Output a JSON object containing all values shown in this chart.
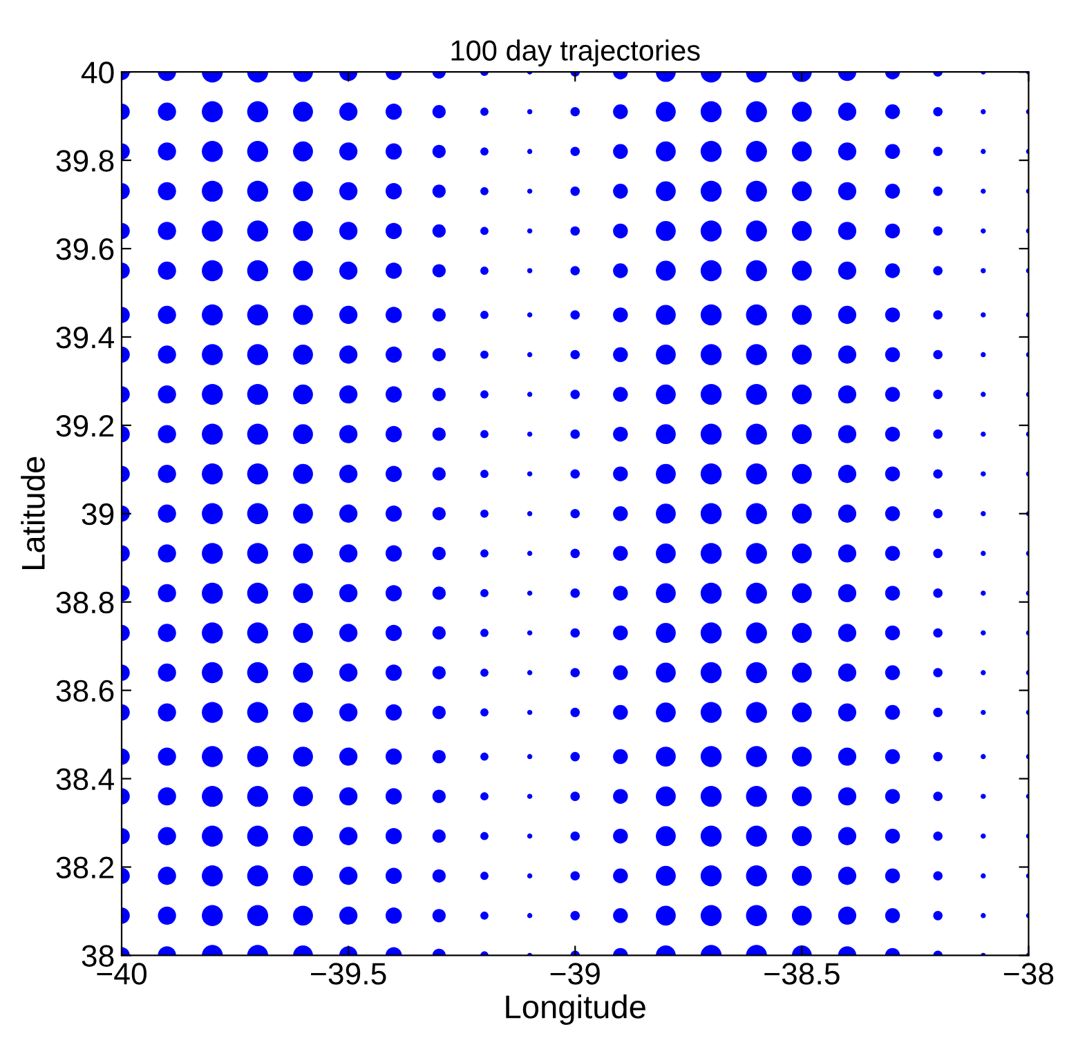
{
  "chart_data": {
    "type": "bubble",
    "title": "100 day trajectories",
    "xlabel": "Longitude",
    "ylabel": "Latitude",
    "xlim": [
      -40,
      -38
    ],
    "ylim": [
      38,
      40
    ],
    "xticks": [
      {
        "value": -40,
        "label": "−40"
      },
      {
        "value": -39.5,
        "label": "−39.5"
      },
      {
        "value": -39,
        "label": "−39"
      },
      {
        "value": -38.5,
        "label": "−38.5"
      },
      {
        "value": -38,
        "label": "−38"
      }
    ],
    "yticks": [
      38,
      38.2,
      38.4,
      38.6,
      38.8,
      39,
      39.2,
      39.4,
      39.6,
      39.8,
      40
    ],
    "grid": false,
    "marker": "circle",
    "series": [
      {
        "color": "#0000ff",
        "x": [
          -40,
          -40,
          -40,
          -40,
          -40,
          -40,
          -40,
          -40,
          -40,
          -40,
          -40,
          -40,
          -40,
          -40,
          -40,
          -40,
          -40,
          -40,
          -40,
          -40,
          -40,
          -40,
          -40
        ],
        "values": [
          38,
          38.09,
          38.18,
          38.27,
          38.36,
          38.45,
          38.55,
          38.64,
          38.73,
          38.82,
          38.91,
          39,
          39.09,
          39.18,
          39.27,
          39.36,
          39.45,
          39.55,
          39.64,
          39.73,
          39.82,
          39.91,
          40
        ],
        "sizes": [
          0.6,
          0.6,
          0.6,
          0.6,
          0.6,
          0.6,
          0.6,
          0.6,
          0.6,
          0.6,
          0.6,
          0.6,
          0.6,
          0.6,
          0.6,
          0.6,
          0.6,
          0.6,
          0.6,
          0.6,
          0.6,
          0.6,
          0.6
        ]
      },
      {
        "color": "#0000ff",
        "x": [
          -39.9,
          -39.9,
          -39.9,
          -39.9,
          -39.9,
          -39.9,
          -39.9,
          -39.9,
          -39.9,
          -39.9,
          -39.9,
          -39.9,
          -39.9,
          -39.9,
          -39.9,
          -39.9,
          -39.9,
          -39.9,
          -39.9,
          -39.9,
          -39.9,
          -39.9,
          -39.9
        ],
        "values": [
          38,
          38.09,
          38.18,
          38.27,
          38.36,
          38.45,
          38.55,
          38.64,
          38.73,
          38.82,
          38.91,
          39,
          39.09,
          39.18,
          39.27,
          39.36,
          39.45,
          39.55,
          39.64,
          39.73,
          39.82,
          39.91,
          40
        ],
        "sizes": [
          0.75,
          0.75,
          0.75,
          0.75,
          0.75,
          0.75,
          0.75,
          0.75,
          0.75,
          0.75,
          0.75,
          0.75,
          0.75,
          0.75,
          0.75,
          0.75,
          0.75,
          0.75,
          0.75,
          0.75,
          0.75,
          0.75,
          0.75
        ]
      },
      {
        "color": "#0000ff",
        "x": [
          -39.8,
          -39.8,
          -39.8,
          -39.8,
          -39.8,
          -39.8,
          -39.8,
          -39.8,
          -39.8,
          -39.8,
          -39.8,
          -39.8,
          -39.8,
          -39.8,
          -39.8,
          -39.8,
          -39.8,
          -39.8,
          -39.8,
          -39.8,
          -39.8,
          -39.8,
          -39.8
        ],
        "values": [
          38,
          38.09,
          38.18,
          38.27,
          38.36,
          38.45,
          38.55,
          38.64,
          38.73,
          38.82,
          38.91,
          39,
          39.09,
          39.18,
          39.27,
          39.36,
          39.45,
          39.55,
          39.64,
          39.73,
          39.82,
          39.91,
          40
        ],
        "sizes": [
          1,
          1,
          1,
          1,
          1,
          1,
          1,
          1,
          1,
          1,
          1,
          1,
          1,
          1,
          1,
          1,
          1,
          1,
          1,
          1,
          1,
          1,
          1
        ]
      },
      {
        "color": "#0000ff",
        "x": [
          -39.7,
          -39.7,
          -39.7,
          -39.7,
          -39.7,
          -39.7,
          -39.7,
          -39.7,
          -39.7,
          -39.7,
          -39.7,
          -39.7,
          -39.7,
          -39.7,
          -39.7,
          -39.7,
          -39.7,
          -39.7,
          -39.7,
          -39.7,
          -39.7,
          -39.7,
          -39.7
        ],
        "values": [
          38,
          38.09,
          38.18,
          38.27,
          38.36,
          38.45,
          38.55,
          38.64,
          38.73,
          38.82,
          38.91,
          39,
          39.09,
          39.18,
          39.27,
          39.36,
          39.45,
          39.55,
          39.64,
          39.73,
          39.82,
          39.91,
          40
        ],
        "sizes": [
          1,
          1,
          1,
          1,
          1,
          1,
          1,
          1,
          1,
          1,
          1,
          1,
          1,
          1,
          1,
          1,
          1,
          1,
          1,
          1,
          1,
          1,
          1
        ]
      },
      {
        "color": "#0000ff",
        "x": [
          -39.6,
          -39.6,
          -39.6,
          -39.6,
          -39.6,
          -39.6,
          -39.6,
          -39.6,
          -39.6,
          -39.6,
          -39.6,
          -39.6,
          -39.6,
          -39.6,
          -39.6,
          -39.6,
          -39.6,
          -39.6,
          -39.6,
          -39.6,
          -39.6,
          -39.6,
          -39.6
        ],
        "values": [
          38,
          38.09,
          38.18,
          38.27,
          38.36,
          38.45,
          38.55,
          38.64,
          38.73,
          38.82,
          38.91,
          39,
          39.09,
          39.18,
          39.27,
          39.36,
          39.45,
          39.55,
          39.64,
          39.73,
          39.82,
          39.91,
          40
        ],
        "sizes": [
          0.9,
          0.9,
          0.9,
          0.9,
          0.9,
          0.9,
          0.9,
          0.9,
          0.9,
          0.9,
          0.9,
          0.9,
          0.9,
          0.9,
          0.9,
          0.9,
          0.9,
          0.9,
          0.9,
          0.9,
          0.9,
          0.9,
          0.9
        ]
      },
      {
        "color": "#0000ff",
        "x": [
          -39.5,
          -39.5,
          -39.5,
          -39.5,
          -39.5,
          -39.5,
          -39.5,
          -39.5,
          -39.5,
          -39.5,
          -39.5,
          -39.5,
          -39.5,
          -39.5,
          -39.5,
          -39.5,
          -39.5,
          -39.5,
          -39.5,
          -39.5,
          -39.5,
          -39.5,
          -39.5
        ],
        "values": [
          38,
          38.09,
          38.18,
          38.27,
          38.36,
          38.45,
          38.55,
          38.64,
          38.73,
          38.82,
          38.91,
          39,
          39.09,
          39.18,
          39.27,
          39.36,
          39.45,
          39.55,
          39.64,
          39.73,
          39.82,
          39.91,
          40
        ],
        "sizes": [
          0.75,
          0.75,
          0.75,
          0.75,
          0.75,
          0.75,
          0.75,
          0.75,
          0.75,
          0.75,
          0.75,
          0.75,
          0.75,
          0.75,
          0.75,
          0.75,
          0.75,
          0.75,
          0.75,
          0.75,
          0.75,
          0.75,
          0.75
        ]
      },
      {
        "color": "#0000ff",
        "x": [
          -39.4,
          -39.4,
          -39.4,
          -39.4,
          -39.4,
          -39.4,
          -39.4,
          -39.4,
          -39.4,
          -39.4,
          -39.4,
          -39.4,
          -39.4,
          -39.4,
          -39.4,
          -39.4,
          -39.4,
          -39.4,
          -39.4,
          -39.4,
          -39.4,
          -39.4,
          -39.4
        ],
        "values": [
          38,
          38.09,
          38.18,
          38.27,
          38.36,
          38.45,
          38.55,
          38.64,
          38.73,
          38.82,
          38.91,
          39,
          39.09,
          39.18,
          39.27,
          39.36,
          39.45,
          39.55,
          39.64,
          39.73,
          39.82,
          39.91,
          40
        ],
        "sizes": [
          0.6,
          0.6,
          0.6,
          0.6,
          0.6,
          0.6,
          0.6,
          0.6,
          0.6,
          0.6,
          0.6,
          0.6,
          0.6,
          0.6,
          0.6,
          0.6,
          0.6,
          0.6,
          0.6,
          0.6,
          0.6,
          0.6,
          0.6
        ]
      },
      {
        "color": "#0000ff",
        "x": [
          -39.3,
          -39.3,
          -39.3,
          -39.3,
          -39.3,
          -39.3,
          -39.3,
          -39.3,
          -39.3,
          -39.3,
          -39.3,
          -39.3,
          -39.3,
          -39.3,
          -39.3,
          -39.3,
          -39.3,
          -39.3,
          -39.3,
          -39.3,
          -39.3,
          -39.3,
          -39.3
        ],
        "values": [
          38,
          38.09,
          38.18,
          38.27,
          38.36,
          38.45,
          38.55,
          38.64,
          38.73,
          38.82,
          38.91,
          39,
          39.09,
          39.18,
          39.27,
          39.36,
          39.45,
          39.55,
          39.64,
          39.73,
          39.82,
          39.91,
          40
        ],
        "sizes": [
          0.4,
          0.4,
          0.4,
          0.4,
          0.4,
          0.4,
          0.4,
          0.4,
          0.4,
          0.4,
          0.4,
          0.4,
          0.4,
          0.4,
          0.4,
          0.4,
          0.4,
          0.4,
          0.4,
          0.4,
          0.4,
          0.4,
          0.4
        ]
      },
      {
        "color": "#0000ff",
        "x": [
          -39.2,
          -39.2,
          -39.2,
          -39.2,
          -39.2,
          -39.2,
          -39.2,
          -39.2,
          -39.2,
          -39.2,
          -39.2,
          -39.2,
          -39.2,
          -39.2,
          -39.2,
          -39.2,
          -39.2,
          -39.2,
          -39.2,
          -39.2,
          -39.2,
          -39.2,
          -39.2
        ],
        "values": [
          38,
          38.09,
          38.18,
          38.27,
          38.36,
          38.45,
          38.55,
          38.64,
          38.73,
          38.82,
          38.91,
          39,
          39.09,
          39.18,
          39.27,
          39.36,
          39.45,
          39.55,
          39.64,
          39.73,
          39.82,
          39.91,
          40
        ],
        "sizes": [
          0.15,
          0.15,
          0.15,
          0.15,
          0.15,
          0.15,
          0.15,
          0.15,
          0.15,
          0.15,
          0.15,
          0.15,
          0.15,
          0.15,
          0.15,
          0.15,
          0.15,
          0.15,
          0.15,
          0.15,
          0.15,
          0.15,
          0.15
        ]
      },
      {
        "color": "#0000ff",
        "x": [
          -39.1,
          -39.1,
          -39.1,
          -39.1,
          -39.1,
          -39.1,
          -39.1,
          -39.1,
          -39.1,
          -39.1,
          -39.1,
          -39.1,
          -39.1,
          -39.1,
          -39.1,
          -39.1,
          -39.1,
          -39.1,
          -39.1,
          -39.1,
          -39.1,
          -39.1,
          -39.1
        ],
        "values": [
          38,
          38.09,
          38.18,
          38.27,
          38.36,
          38.45,
          38.55,
          38.64,
          38.73,
          38.82,
          38.91,
          39,
          39.09,
          39.18,
          39.27,
          39.36,
          39.45,
          39.55,
          39.64,
          39.73,
          39.82,
          39.91,
          40
        ],
        "sizes": [
          0.06,
          0.06,
          0.06,
          0.06,
          0.06,
          0.06,
          0.06,
          0.06,
          0.06,
          0.06,
          0.06,
          0.06,
          0.06,
          0.06,
          0.06,
          0.06,
          0.06,
          0.06,
          0.06,
          0.06,
          0.06,
          0.06,
          0.06
        ]
      },
      {
        "color": "#0000ff",
        "x": [
          -39,
          -39,
          -39,
          -39,
          -39,
          -39,
          -39,
          -39,
          -39,
          -39,
          -39,
          -39,
          -39,
          -39,
          -39,
          -39,
          -39,
          -39,
          -39,
          -39,
          -39,
          -39,
          -39
        ],
        "values": [
          38,
          38.09,
          38.18,
          38.27,
          38.36,
          38.45,
          38.55,
          38.64,
          38.73,
          38.82,
          38.91,
          39,
          39.09,
          39.18,
          39.27,
          39.36,
          39.45,
          39.55,
          39.64,
          39.73,
          39.82,
          39.91,
          40
        ],
        "sizes": [
          0.2,
          0.2,
          0.2,
          0.2,
          0.2,
          0.2,
          0.2,
          0.2,
          0.2,
          0.2,
          0.2,
          0.2,
          0.2,
          0.2,
          0.2,
          0.2,
          0.2,
          0.2,
          0.2,
          0.2,
          0.2,
          0.2,
          0.2
        ]
      },
      {
        "color": "#0000ff",
        "x": [
          -38.9,
          -38.9,
          -38.9,
          -38.9,
          -38.9,
          -38.9,
          -38.9,
          -38.9,
          -38.9,
          -38.9,
          -38.9,
          -38.9,
          -38.9,
          -38.9,
          -38.9,
          -38.9,
          -38.9,
          -38.9,
          -38.9,
          -38.9,
          -38.9,
          -38.9,
          -38.9
        ],
        "values": [
          38,
          38.09,
          38.18,
          38.27,
          38.36,
          38.45,
          38.55,
          38.64,
          38.73,
          38.82,
          38.91,
          39,
          39.09,
          39.18,
          39.27,
          39.36,
          39.45,
          39.55,
          39.64,
          39.73,
          39.82,
          39.91,
          40
        ],
        "sizes": [
          0.5,
          0.5,
          0.5,
          0.5,
          0.5,
          0.5,
          0.5,
          0.5,
          0.5,
          0.5,
          0.5,
          0.5,
          0.5,
          0.5,
          0.5,
          0.5,
          0.5,
          0.5,
          0.5,
          0.5,
          0.5,
          0.5,
          0.5
        ]
      },
      {
        "color": "#0000ff",
        "x": [
          -38.8,
          -38.8,
          -38.8,
          -38.8,
          -38.8,
          -38.8,
          -38.8,
          -38.8,
          -38.8,
          -38.8,
          -38.8,
          -38.8,
          -38.8,
          -38.8,
          -38.8,
          -38.8,
          -38.8,
          -38.8,
          -38.8,
          -38.8,
          -38.8,
          -38.8,
          -38.8
        ],
        "values": [
          38,
          38.09,
          38.18,
          38.27,
          38.36,
          38.45,
          38.55,
          38.64,
          38.73,
          38.82,
          38.91,
          39,
          39.09,
          39.18,
          39.27,
          39.36,
          39.45,
          39.55,
          39.64,
          39.73,
          39.82,
          39.91,
          40
        ],
        "sizes": [
          0.9,
          0.9,
          0.9,
          0.9,
          0.9,
          0.9,
          0.9,
          0.9,
          0.9,
          0.9,
          0.9,
          0.9,
          0.9,
          0.9,
          0.9,
          0.9,
          0.9,
          0.9,
          0.9,
          0.9,
          0.9,
          0.9,
          0.9
        ]
      },
      {
        "color": "#0000ff",
        "x": [
          -38.7,
          -38.7,
          -38.7,
          -38.7,
          -38.7,
          -38.7,
          -38.7,
          -38.7,
          -38.7,
          -38.7,
          -38.7,
          -38.7,
          -38.7,
          -38.7,
          -38.7,
          -38.7,
          -38.7,
          -38.7,
          -38.7,
          -38.7,
          -38.7,
          -38.7,
          -38.7
        ],
        "values": [
          38,
          38.09,
          38.18,
          38.27,
          38.36,
          38.45,
          38.55,
          38.64,
          38.73,
          38.82,
          38.91,
          39,
          39.09,
          39.18,
          39.27,
          39.36,
          39.45,
          39.55,
          39.64,
          39.73,
          39.82,
          39.91,
          40
        ],
        "sizes": [
          1,
          1,
          1,
          1,
          1,
          1,
          1,
          1,
          1,
          1,
          1,
          1,
          1,
          1,
          1,
          1,
          1,
          1,
          1,
          1,
          1,
          1,
          1
        ]
      },
      {
        "color": "#0000ff",
        "x": [
          -38.6,
          -38.6,
          -38.6,
          -38.6,
          -38.6,
          -38.6,
          -38.6,
          -38.6,
          -38.6,
          -38.6,
          -38.6,
          -38.6,
          -38.6,
          -38.6,
          -38.6,
          -38.6,
          -38.6,
          -38.6,
          -38.6,
          -38.6,
          -38.6,
          -38.6,
          -38.6
        ],
        "values": [
          38,
          38.09,
          38.18,
          38.27,
          38.36,
          38.45,
          38.55,
          38.64,
          38.73,
          38.82,
          38.91,
          39,
          39.09,
          39.18,
          39.27,
          39.36,
          39.45,
          39.55,
          39.64,
          39.73,
          39.82,
          39.91,
          40
        ],
        "sizes": [
          1,
          1,
          1,
          1,
          1,
          1,
          1,
          1,
          1,
          1,
          1,
          1,
          1,
          1,
          1,
          1,
          1,
          1,
          1,
          1,
          1,
          1,
          1
        ]
      },
      {
        "color": "#0000ff",
        "x": [
          -38.5,
          -38.5,
          -38.5,
          -38.5,
          -38.5,
          -38.5,
          -38.5,
          -38.5,
          -38.5,
          -38.5,
          -38.5,
          -38.5,
          -38.5,
          -38.5,
          -38.5,
          -38.5,
          -38.5,
          -38.5,
          -38.5,
          -38.5,
          -38.5,
          -38.5,
          -38.5
        ],
        "values": [
          38,
          38.09,
          38.18,
          38.27,
          38.36,
          38.45,
          38.55,
          38.64,
          38.73,
          38.82,
          38.91,
          39,
          39.09,
          39.18,
          39.27,
          39.36,
          39.45,
          39.55,
          39.64,
          39.73,
          39.82,
          39.91,
          40
        ],
        "sizes": [
          0.9,
          0.9,
          0.9,
          0.9,
          0.9,
          0.9,
          0.9,
          0.9,
          0.9,
          0.9,
          0.9,
          0.9,
          0.9,
          0.9,
          0.9,
          0.9,
          0.9,
          0.9,
          0.9,
          0.9,
          0.9,
          0.9,
          0.9
        ]
      },
      {
        "color": "#0000ff",
        "x": [
          -38.4,
          -38.4,
          -38.4,
          -38.4,
          -38.4,
          -38.4,
          -38.4,
          -38.4,
          -38.4,
          -38.4,
          -38.4,
          -38.4,
          -38.4,
          -38.4,
          -38.4,
          -38.4,
          -38.4,
          -38.4,
          -38.4,
          -38.4,
          -38.4,
          -38.4,
          -38.4
        ],
        "values": [
          38,
          38.09,
          38.18,
          38.27,
          38.36,
          38.45,
          38.55,
          38.64,
          38.73,
          38.82,
          38.91,
          39,
          39.09,
          39.18,
          39.27,
          39.36,
          39.45,
          39.55,
          39.64,
          39.73,
          39.82,
          39.91,
          40
        ],
        "sizes": [
          0.75,
          0.75,
          0.75,
          0.75,
          0.75,
          0.75,
          0.75,
          0.75,
          0.75,
          0.75,
          0.75,
          0.75,
          0.75,
          0.75,
          0.75,
          0.75,
          0.75,
          0.75,
          0.75,
          0.75,
          0.75,
          0.75,
          0.75
        ]
      },
      {
        "color": "#0000ff",
        "x": [
          -38.3,
          -38.3,
          -38.3,
          -38.3,
          -38.3,
          -38.3,
          -38.3,
          -38.3,
          -38.3,
          -38.3,
          -38.3,
          -38.3,
          -38.3,
          -38.3,
          -38.3,
          -38.3,
          -38.3,
          -38.3,
          -38.3,
          -38.3,
          -38.3,
          -38.3,
          -38.3
        ],
        "values": [
          38,
          38.09,
          38.18,
          38.27,
          38.36,
          38.45,
          38.55,
          38.64,
          38.73,
          38.82,
          38.91,
          39,
          39.09,
          39.18,
          39.27,
          39.36,
          39.45,
          39.55,
          39.64,
          39.73,
          39.82,
          39.91,
          40
        ],
        "sizes": [
          0.5,
          0.5,
          0.5,
          0.5,
          0.5,
          0.5,
          0.5,
          0.5,
          0.5,
          0.5,
          0.5,
          0.5,
          0.5,
          0.5,
          0.5,
          0.5,
          0.5,
          0.5,
          0.5,
          0.5,
          0.5,
          0.5,
          0.5
        ]
      },
      {
        "color": "#0000ff",
        "x": [
          -38.2,
          -38.2,
          -38.2,
          -38.2,
          -38.2,
          -38.2,
          -38.2,
          -38.2,
          -38.2,
          -38.2,
          -38.2,
          -38.2,
          -38.2,
          -38.2,
          -38.2,
          -38.2,
          -38.2,
          -38.2,
          -38.2,
          -38.2,
          -38.2,
          -38.2,
          -38.2
        ],
        "values": [
          38,
          38.09,
          38.18,
          38.27,
          38.36,
          38.45,
          38.55,
          38.64,
          38.73,
          38.82,
          38.91,
          39,
          39.09,
          39.18,
          39.27,
          39.36,
          39.45,
          39.55,
          39.64,
          39.73,
          39.82,
          39.91,
          40
        ],
        "sizes": [
          0.2,
          0.2,
          0.2,
          0.2,
          0.2,
          0.2,
          0.2,
          0.2,
          0.2,
          0.2,
          0.2,
          0.2,
          0.2,
          0.2,
          0.2,
          0.2,
          0.2,
          0.2,
          0.2,
          0.2,
          0.2,
          0.2,
          0.2
        ]
      },
      {
        "color": "#0000ff",
        "x": [
          -38.1,
          -38.1,
          -38.1,
          -38.1,
          -38.1,
          -38.1,
          -38.1,
          -38.1,
          -38.1,
          -38.1,
          -38.1,
          -38.1,
          -38.1,
          -38.1,
          -38.1,
          -38.1,
          -38.1,
          -38.1,
          -38.1,
          -38.1,
          -38.1,
          -38.1,
          -38.1
        ],
        "values": [
          38,
          38.09,
          38.18,
          38.27,
          38.36,
          38.45,
          38.55,
          38.64,
          38.73,
          38.82,
          38.91,
          39,
          39.09,
          39.18,
          39.27,
          39.36,
          39.45,
          39.55,
          39.64,
          39.73,
          39.82,
          39.91,
          40
        ],
        "sizes": [
          0.06,
          0.06,
          0.06,
          0.06,
          0.06,
          0.06,
          0.06,
          0.06,
          0.06,
          0.06,
          0.06,
          0.06,
          0.06,
          0.06,
          0.06,
          0.06,
          0.06,
          0.06,
          0.06,
          0.06,
          0.06,
          0.06,
          0.06
        ]
      },
      {
        "color": "#0000ff",
        "x": [
          -38,
          -38,
          -38,
          -38,
          -38,
          -38,
          -38,
          -38,
          -38,
          -38,
          -38,
          -38,
          -38,
          -38,
          -38,
          -38,
          -38,
          -38,
          -38,
          -38,
          -38,
          -38,
          -38
        ],
        "values": [
          38,
          38.09,
          38.18,
          38.27,
          38.36,
          38.45,
          38.55,
          38.64,
          38.73,
          38.82,
          38.91,
          39,
          39.09,
          39.18,
          39.27,
          39.36,
          39.45,
          39.55,
          39.64,
          39.73,
          39.82,
          39.91,
          40
        ],
        "sizes": [
          0.06,
          0.06,
          0.06,
          0.06,
          0.06,
          0.06,
          0.06,
          0.06,
          0.06,
          0.06,
          0.06,
          0.06,
          0.06,
          0.06,
          0.06,
          0.06,
          0.06,
          0.06,
          0.06,
          0.06,
          0.06,
          0.06,
          0.06
        ]
      }
    ]
  }
}
